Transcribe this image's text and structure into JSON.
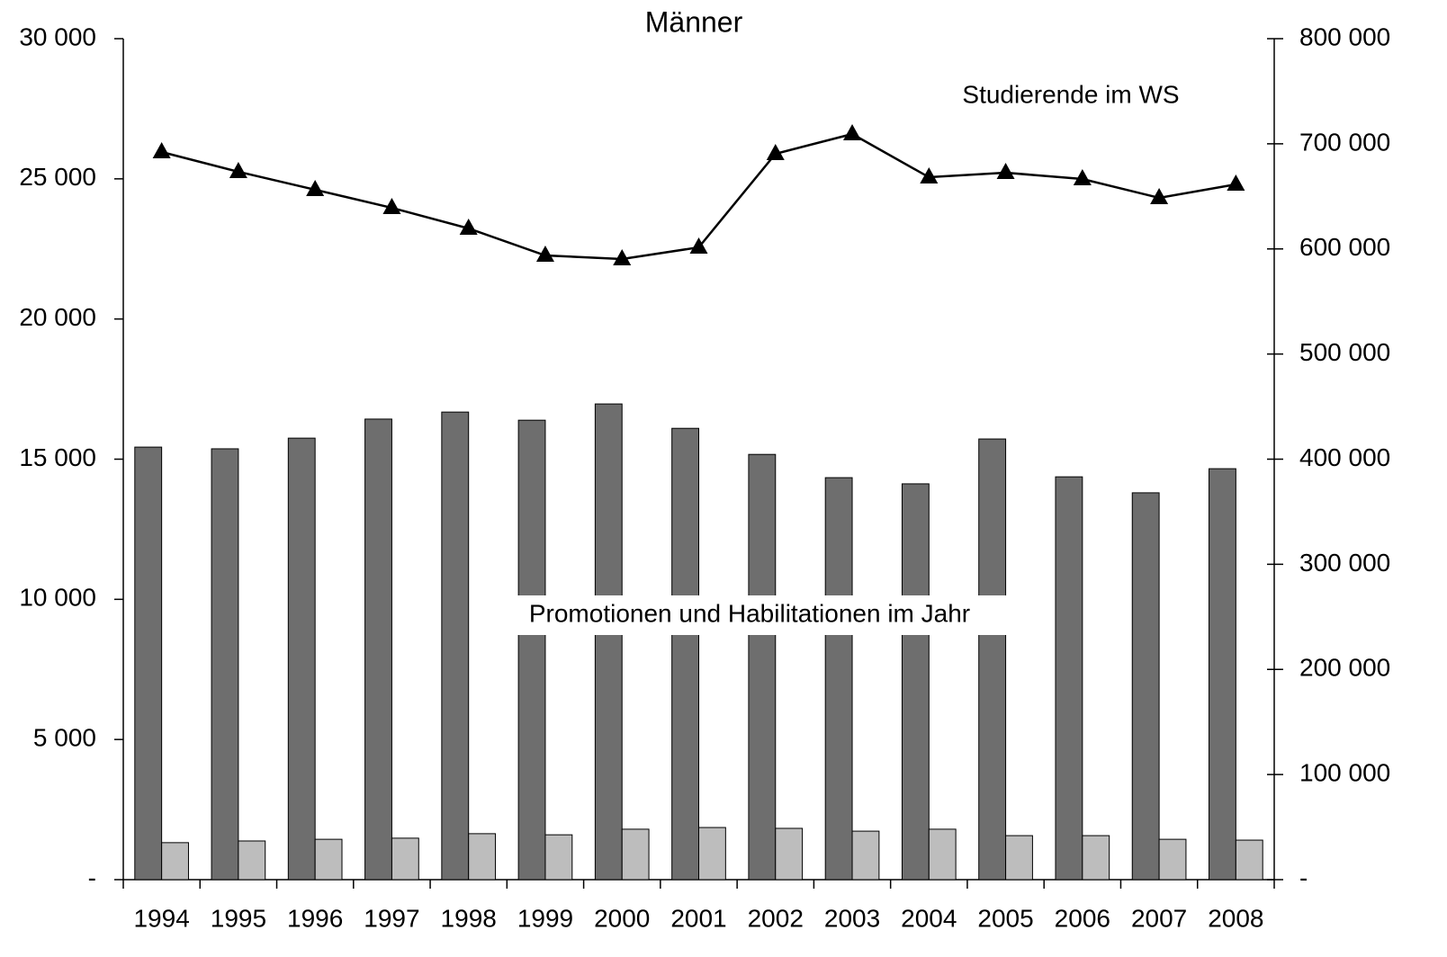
{
  "chart_data": {
    "type": "bar",
    "title": "Männer",
    "annotations": [
      "Studierende im WS",
      "Promotionen und Habilitationen im Jahr"
    ],
    "categories": [
      "1994",
      "1995",
      "1996",
      "1997",
      "1998",
      "1999",
      "2000",
      "2001",
      "2002",
      "2003",
      "2004",
      "2005",
      "2006",
      "2007",
      "2008"
    ],
    "series": [
      {
        "color": "#6e6e6e",
        "values": [
          15430,
          15370,
          15750,
          16430,
          16680,
          16390,
          16970,
          16100,
          15170,
          14340,
          14120,
          15720,
          14370,
          13800,
          14660
        ]
      },
      {
        "color": "#bdbdbd",
        "values": [
          1320,
          1380,
          1440,
          1480,
          1640,
          1600,
          1800,
          1860,
          1830,
          1730,
          1800,
          1570,
          1570,
          1440,
          1410
        ]
      },
      {
        "type": "line",
        "axis": "y2",
        "color": "#000000",
        "marker": "triangle",
        "values": [
          692200,
          673400,
          656300,
          639100,
          619500,
          593800,
          590400,
          601500,
          690500,
          709300,
          668200,
          672500,
          666500,
          648600,
          661400
        ]
      }
    ],
    "ylim": [
      0,
      30000
    ],
    "yticks": [
      {
        "value": 0,
        "label": "-"
      },
      {
        "value": 5000,
        "label": "5 000"
      },
      {
        "value": 10000,
        "label": "10 000"
      },
      {
        "value": 15000,
        "label": "15 000"
      },
      {
        "value": 20000,
        "label": "20 000"
      },
      {
        "value": 25000,
        "label": "25 000"
      },
      {
        "value": 30000,
        "label": "30 000"
      }
    ],
    "y2lim": [
      0,
      800000
    ],
    "y2ticks": [
      {
        "value": 0,
        "label": "-"
      },
      {
        "value": 100000,
        "label": "100 000"
      },
      {
        "value": 200000,
        "label": "200 000"
      },
      {
        "value": 300000,
        "label": "300 000"
      },
      {
        "value": 400000,
        "label": "400 000"
      },
      {
        "value": 500000,
        "label": "500 000"
      },
      {
        "value": 600000,
        "label": "600 000"
      },
      {
        "value": 700000,
        "label": "700 000"
      },
      {
        "value": 800000,
        "label": "800 000"
      }
    ],
    "grid": false
  }
}
